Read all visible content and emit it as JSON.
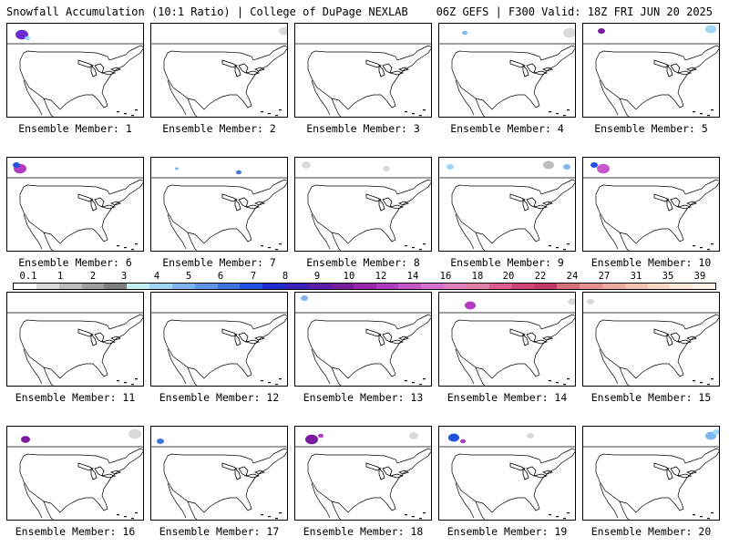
{
  "header": {
    "left": "Snowfall Accumulation (10:1 Ratio) | College of DuPage NEXLAB",
    "right": "06Z GEFS | F300 Valid: 18Z FRI JUN 20 2025"
  },
  "colorbar": {
    "labels": [
      "0.1",
      "1",
      "2",
      "3",
      "4",
      "5",
      "6",
      "7",
      "8",
      "9",
      "10",
      "12",
      "14",
      "16",
      "18",
      "20",
      "22",
      "24",
      "27",
      "31",
      "35",
      "39"
    ],
    "colors": [
      "#ffffff",
      "#d9d9d9",
      "#bdbdbd",
      "#9e9e9e",
      "#7f7f7f",
      "#bfeff2",
      "#9ed6f5",
      "#7fb5f0",
      "#5f95ea",
      "#3f74e4",
      "#2050de",
      "#1c2ccf",
      "#3a22b8",
      "#5a1ea6",
      "#7a1aa0",
      "#9a26b0",
      "#b13cc0",
      "#c657c9",
      "#d66fcf",
      "#e07fc0",
      "#e080a8",
      "#dc5d8e",
      "#d24478",
      "#c43a67",
      "#d8707a",
      "#e6908e",
      "#eeaaa0",
      "#f3c2b0",
      "#f8d9c4",
      "#fcebd8",
      "#fff3e6"
    ]
  },
  "panels": [
    {
      "label": "Ensemble Member: 1",
      "snow": [
        {
          "cx": 16,
          "cy": 12,
          "r": 7,
          "c": "#6a2bd0"
        },
        {
          "cx": 22,
          "cy": 16,
          "r": 3,
          "c": "#9ed6f5"
        }
      ]
    },
    {
      "label": "Ensemble Member: 2",
      "snow": [
        {
          "cx": 146,
          "cy": 8,
          "r": 6,
          "c": "#d9d9d9"
        }
      ]
    },
    {
      "label": "Ensemble Member: 3",
      "snow": []
    },
    {
      "label": "Ensemble Member: 4",
      "snow": [
        {
          "cx": 28,
          "cy": 10,
          "r": 3,
          "c": "#7fb5f0"
        },
        {
          "cx": 143,
          "cy": 10,
          "r": 7,
          "c": "#d9d9d9"
        }
      ]
    },
    {
      "label": "Ensemble Member: 5",
      "snow": [
        {
          "cx": 20,
          "cy": 8,
          "r": 4,
          "c": "#7a1aa0"
        },
        {
          "cx": 140,
          "cy": 6,
          "r": 6,
          "c": "#9ed6f5"
        }
      ]
    },
    {
      "label": "Ensemble Member: 6",
      "snow": [
        {
          "cx": 14,
          "cy": 12,
          "r": 7,
          "c": "#b13cc0"
        },
        {
          "cx": 10,
          "cy": 8,
          "r": 4,
          "c": "#2050de"
        }
      ]
    },
    {
      "label": "Ensemble Member: 7",
      "snow": [
        {
          "cx": 96,
          "cy": 16,
          "r": 3,
          "c": "#3f74e4"
        },
        {
          "cx": 28,
          "cy": 12,
          "r": 2,
          "c": "#7fb5f0"
        }
      ]
    },
    {
      "label": "Ensemble Member: 8",
      "snow": [
        {
          "cx": 12,
          "cy": 8,
          "r": 5,
          "c": "#d9d9d9"
        },
        {
          "cx": 100,
          "cy": 12,
          "r": 4,
          "c": "#d9d9d9"
        }
      ]
    },
    {
      "label": "Ensemble Member: 9",
      "snow": [
        {
          "cx": 12,
          "cy": 10,
          "r": 4,
          "c": "#9ed6f5"
        },
        {
          "cx": 120,
          "cy": 8,
          "r": 6,
          "c": "#bdbdbd"
        },
        {
          "cx": 140,
          "cy": 10,
          "r": 4,
          "c": "#7fb5f0"
        }
      ]
    },
    {
      "label": "Ensemble Member: 10",
      "snow": [
        {
          "cx": 22,
          "cy": 12,
          "r": 7,
          "c": "#c657c9"
        },
        {
          "cx": 12,
          "cy": 8,
          "r": 4,
          "c": "#2050de"
        }
      ]
    },
    {
      "label": "Ensemble Member: 11",
      "snow": []
    },
    {
      "label": "Ensemble Member: 12",
      "snow": []
    },
    {
      "label": "Ensemble Member: 13",
      "snow": [
        {
          "cx": 10,
          "cy": 6,
          "r": 4,
          "c": "#7fb5f0"
        }
      ]
    },
    {
      "label": "Ensemble Member: 14",
      "snow": [
        {
          "cx": 34,
          "cy": 14,
          "r": 6,
          "c": "#b13cc0"
        },
        {
          "cx": 146,
          "cy": 10,
          "r": 5,
          "c": "#d9d9d9"
        }
      ]
    },
    {
      "label": "Ensemble Member: 15",
      "snow": [
        {
          "cx": 8,
          "cy": 10,
          "r": 4,
          "c": "#d9d9d9"
        }
      ]
    },
    {
      "label": "Ensemble Member: 16",
      "snow": [
        {
          "cx": 20,
          "cy": 14,
          "r": 5,
          "c": "#7a1aa0"
        },
        {
          "cx": 140,
          "cy": 8,
          "r": 7,
          "c": "#d9d9d9"
        }
      ]
    },
    {
      "label": "Ensemble Member: 17",
      "snow": [
        {
          "cx": 10,
          "cy": 16,
          "r": 4,
          "c": "#3f74e4"
        }
      ]
    },
    {
      "label": "Ensemble Member: 18",
      "snow": [
        {
          "cx": 18,
          "cy": 14,
          "r": 7,
          "c": "#7a1aa0"
        },
        {
          "cx": 28,
          "cy": 10,
          "r": 3,
          "c": "#b13cc0"
        },
        {
          "cx": 130,
          "cy": 10,
          "r": 5,
          "c": "#d9d9d9"
        }
      ]
    },
    {
      "label": "Ensemble Member: 19",
      "snow": [
        {
          "cx": 16,
          "cy": 12,
          "r": 6,
          "c": "#2050de"
        },
        {
          "cx": 26,
          "cy": 16,
          "r": 3,
          "c": "#b13cc0"
        },
        {
          "cx": 100,
          "cy": 10,
          "r": 4,
          "c": "#d9d9d9"
        }
      ]
    },
    {
      "label": "Ensemble Member: 20",
      "snow": [
        {
          "cx": 140,
          "cy": 10,
          "r": 6,
          "c": "#7fb5f0"
        },
        {
          "cx": 146,
          "cy": 6,
          "r": 4,
          "c": "#9ed6f5"
        }
      ]
    }
  ]
}
